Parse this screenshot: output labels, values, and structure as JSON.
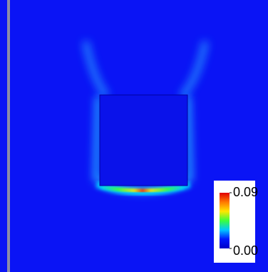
{
  "chart_data": {
    "type": "heatmap",
    "colorbar": {
      "clim": [
        0,
        0.09
      ],
      "ticks": [
        {
          "value": 0,
          "label": "0.00"
        },
        {
          "value": 0.09,
          "label": "0.09"
        }
      ],
      "colors": [
        "#0000c8",
        "#0018ff",
        "#00c8ff",
        "#3cff3c",
        "#ffe600",
        "#ff7800",
        "#e10000"
      ]
    }
  }
}
